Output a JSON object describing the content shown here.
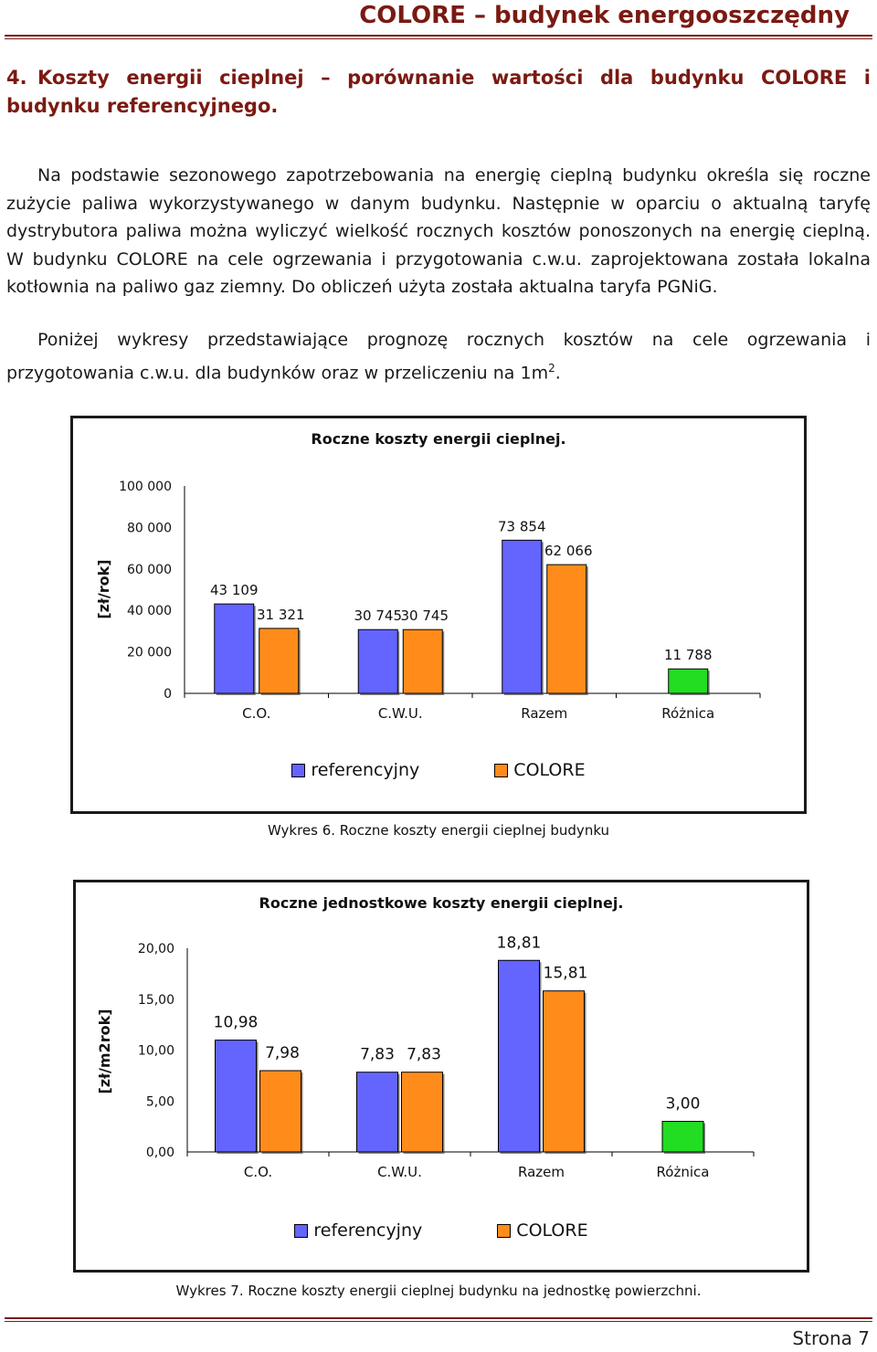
{
  "header": {
    "title": "COLORE – budynek energooszczędny"
  },
  "section": {
    "number": "4.",
    "heading": "Koszty energii cieplnej – porównanie wartości dla budynku COLORE i budynku referencyjnego."
  },
  "paragraph1": {
    "text": "Na podstawie sezonowego zapotrzebowania na energię cieplną budynku określa się roczne zużycie paliwa wykorzystywanego w danym budynku. Następnie w oparciu o aktualną taryfę dystrybutora paliwa można wyliczyć wielkość rocznych kosztów ponoszonych na energię cieplną. W budynku COLORE na cele ogrzewania i przygotowania c.w.u. zaprojektowana została lokalna kotłownia na paliwo gaz ziemny. Do obliczeń użyta została aktualna taryfa PGNiG."
  },
  "paragraph2": {
    "text": "Poniżej wykresy przedstawiające prognozę rocznych kosztów na cele ogrzewania i przygotowania c.w.u. dla budynków oraz w przeliczeniu na 1m",
    "sup": "2",
    "end": "."
  },
  "colors": {
    "referencyjny": "#6464ff",
    "colore": "#ff8c1a",
    "roznica": "#22dd22"
  },
  "chart_data": [
    {
      "type": "bar",
      "title": "Roczne koszty energii cieplnej.",
      "ylabel": "[zł/rok]",
      "ylim": [
        0,
        100000
      ],
      "yticks": [
        "0",
        "20 000",
        "40 000",
        "60 000",
        "80 000",
        "100 000"
      ],
      "categories": [
        "C.O.",
        "C.W.U.",
        "Razem",
        "Różnica"
      ],
      "series": [
        {
          "name": "referencyjny",
          "values": [
            43109,
            30745,
            73854,
            null
          ],
          "labels": [
            "43 109",
            "30 745",
            "73 854",
            ""
          ]
        },
        {
          "name": "COLORE",
          "values": [
            31321,
            30745,
            62066,
            null
          ],
          "labels": [
            "31 321",
            "30 745",
            "62 066",
            ""
          ]
        },
        {
          "name": "",
          "values": [
            null,
            null,
            null,
            11788
          ],
          "labels": [
            "",
            "",
            "",
            "11 788"
          ]
        }
      ],
      "legend": "bottom",
      "caption": "Wykres 6. Roczne koszty energii cieplnej budynku"
    },
    {
      "type": "bar",
      "title": "Roczne jednostkowe koszty energii cieplnej.",
      "ylabel": "[zł/m2rok]",
      "ylim": [
        0,
        20
      ],
      "yticks": [
        "0,00",
        "5,00",
        "10,00",
        "15,00",
        "20,00"
      ],
      "categories": [
        "C.O.",
        "C.W.U.",
        "Razem",
        "Różnica"
      ],
      "series": [
        {
          "name": "referencyjny",
          "values": [
            10.98,
            7.83,
            18.81,
            null
          ],
          "labels": [
            "10,98",
            "7,83",
            "18,81",
            ""
          ]
        },
        {
          "name": "COLORE",
          "values": [
            7.98,
            7.83,
            15.81,
            null
          ],
          "labels": [
            "7,98",
            "7,83",
            "15,81",
            ""
          ]
        },
        {
          "name": "",
          "values": [
            null,
            null,
            null,
            3.0
          ],
          "labels": [
            "",
            "",
            "",
            "3,00"
          ]
        }
      ],
      "legend": "bottom",
      "caption": "Wykres 7. Roczne koszty energii cieplnej budynku na jednostkę powierzchni."
    }
  ],
  "footer": {
    "page": "Strona 7"
  }
}
